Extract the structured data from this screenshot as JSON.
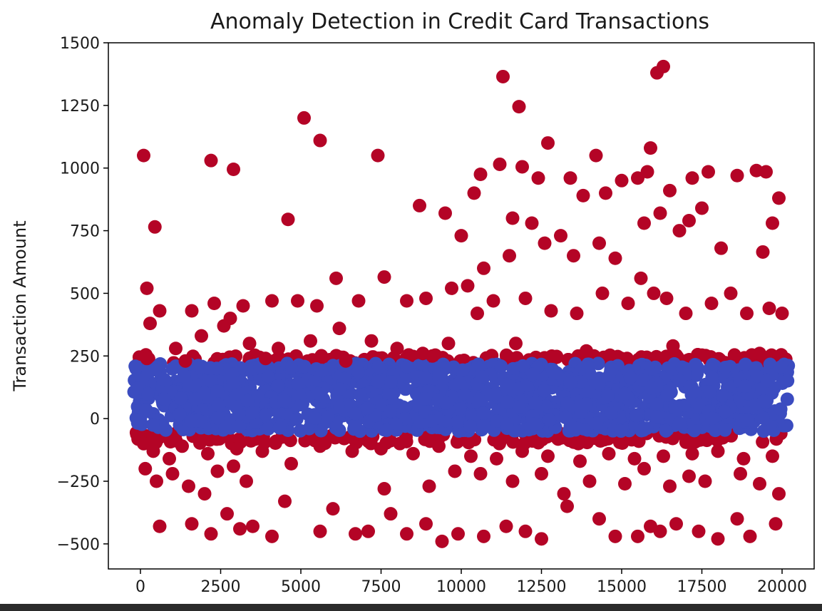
{
  "chart_data": {
    "type": "scatter",
    "title": "Anomaly Detection in Credit Card Transactions",
    "xlabel": "",
    "ylabel": "Transaction Amount",
    "xlim": [
      -1000,
      21000
    ],
    "ylim": [
      -600,
      1500
    ],
    "xticks": [
      0,
      2500,
      5000,
      7500,
      10000,
      12500,
      15000,
      17500,
      20000
    ],
    "xtick_labels": [
      "0",
      "2500",
      "5000",
      "7500",
      "10000",
      "12500",
      "15000",
      "17500",
      "20000"
    ],
    "yticks": [
      -500,
      -250,
      0,
      250,
      500,
      750,
      1000,
      1250,
      1500
    ],
    "ytick_labels": [
      "−500",
      "−250",
      "0",
      "250",
      "500",
      "750",
      "1000",
      "1250",
      "1500"
    ],
    "grid": false,
    "colors": {
      "normal": "#3b4cc0",
      "anomaly": "#b40426"
    },
    "series": [
      {
        "key": "normal",
        "x_range": [
          -200,
          20200
        ],
        "y_band": [
          -50,
          220
        ],
        "count": 20000
      },
      {
        "key": "anomaly",
        "points": [
          [
            100,
            1050
          ],
          [
            2200,
            1030
          ],
          [
            2900,
            995
          ],
          [
            5100,
            1200
          ],
          [
            5600,
            1110
          ],
          [
            7400,
            1050
          ],
          [
            11300,
            1365
          ],
          [
            11800,
            1245
          ],
          [
            12700,
            1100
          ],
          [
            14200,
            1050
          ],
          [
            15900,
            1080
          ],
          [
            16100,
            1380
          ],
          [
            16300,
            1405
          ],
          [
            450,
            765
          ],
          [
            4600,
            795
          ],
          [
            8700,
            850
          ],
          [
            9500,
            820
          ],
          [
            10000,
            730
          ],
          [
            10400,
            900
          ],
          [
            10600,
            975
          ],
          [
            11200,
            1015
          ],
          [
            11900,
            1005
          ],
          [
            12400,
            960
          ],
          [
            13400,
            960
          ],
          [
            13800,
            890
          ],
          [
            14500,
            900
          ],
          [
            15000,
            950
          ],
          [
            15500,
            960
          ],
          [
            15800,
            985
          ],
          [
            16500,
            910
          ],
          [
            17200,
            960
          ],
          [
            17700,
            985
          ],
          [
            18600,
            970
          ],
          [
            19200,
            990
          ],
          [
            19500,
            985
          ],
          [
            19900,
            880
          ],
          [
            19700,
            780
          ],
          [
            19400,
            665
          ],
          [
            17100,
            790
          ],
          [
            17500,
            840
          ],
          [
            18100,
            680
          ],
          [
            11600,
            800
          ],
          [
            12200,
            780
          ],
          [
            13100,
            730
          ],
          [
            14300,
            700
          ],
          [
            15700,
            780
          ],
          [
            16200,
            820
          ],
          [
            16800,
            750
          ],
          [
            10700,
            600
          ],
          [
            11500,
            650
          ],
          [
            12600,
            700
          ],
          [
            13500,
            650
          ],
          [
            14800,
            640
          ],
          [
            15600,
            560
          ],
          [
            16000,
            500
          ],
          [
            200,
            520
          ],
          [
            300,
            380
          ],
          [
            600,
            430
          ],
          [
            1600,
            430
          ],
          [
            2300,
            460
          ],
          [
            2800,
            400
          ],
          [
            3200,
            450
          ],
          [
            4100,
            470
          ],
          [
            4900,
            470
          ],
          [
            5500,
            450
          ],
          [
            6100,
            560
          ],
          [
            6800,
            470
          ],
          [
            7600,
            565
          ],
          [
            8300,
            470
          ],
          [
            8900,
            480
          ],
          [
            9700,
            520
          ],
          [
            10200,
            530
          ],
          [
            200,
            240
          ],
          [
            1100,
            280
          ],
          [
            1900,
            330
          ],
          [
            2600,
            370
          ],
          [
            3400,
            300
          ],
          [
            4300,
            280
          ],
          [
            5300,
            310
          ],
          [
            6200,
            360
          ],
          [
            7200,
            310
          ],
          [
            8000,
            280
          ],
          [
            8800,
            260
          ],
          [
            9600,
            300
          ],
          [
            10500,
            420
          ],
          [
            11000,
            470
          ],
          [
            12000,
            480
          ],
          [
            12800,
            430
          ],
          [
            13600,
            420
          ],
          [
            14400,
            500
          ],
          [
            15200,
            460
          ],
          [
            16400,
            480
          ],
          [
            17000,
            420
          ],
          [
            17800,
            460
          ],
          [
            18400,
            500
          ],
          [
            18900,
            420
          ],
          [
            19600,
            440
          ],
          [
            20000,
            420
          ],
          [
            1400,
            230
          ],
          [
            3900,
            240
          ],
          [
            6400,
            230
          ],
          [
            9100,
            250
          ],
          [
            11700,
            300
          ],
          [
            13900,
            270
          ],
          [
            16600,
            290
          ],
          [
            19300,
            260
          ],
          [
            100,
            -100
          ],
          [
            400,
            -130
          ],
          [
            900,
            -160
          ],
          [
            1300,
            -110
          ],
          [
            2100,
            -140
          ],
          [
            3000,
            -120
          ],
          [
            3800,
            -130
          ],
          [
            4700,
            -180
          ],
          [
            5600,
            -110
          ],
          [
            6600,
            -130
          ],
          [
            7500,
            -120
          ],
          [
            8500,
            -140
          ],
          [
            9300,
            -110
          ],
          [
            10300,
            -150
          ],
          [
            11100,
            -160
          ],
          [
            11900,
            -130
          ],
          [
            12700,
            -150
          ],
          [
            13700,
            -170
          ],
          [
            14600,
            -140
          ],
          [
            15400,
            -160
          ],
          [
            16300,
            -150
          ],
          [
            17200,
            -140
          ],
          [
            18000,
            -130
          ],
          [
            18800,
            -160
          ],
          [
            19700,
            -150
          ],
          [
            150,
            -200
          ],
          [
            500,
            -250
          ],
          [
            1000,
            -220
          ],
          [
            1500,
            -270
          ],
          [
            2000,
            -300
          ],
          [
            2400,
            -210
          ],
          [
            2900,
            -190
          ],
          [
            3300,
            -250
          ],
          [
            4500,
            -330
          ],
          [
            6000,
            -360
          ],
          [
            7600,
            -280
          ],
          [
            9000,
            -270
          ],
          [
            9800,
            -210
          ],
          [
            10600,
            -220
          ],
          [
            11600,
            -250
          ],
          [
            12500,
            -220
          ],
          [
            13200,
            -300
          ],
          [
            14000,
            -250
          ],
          [
            15100,
            -260
          ],
          [
            15700,
            -200
          ],
          [
            16500,
            -270
          ],
          [
            17100,
            -230
          ],
          [
            17600,
            -250
          ],
          [
            18700,
            -220
          ],
          [
            19300,
            -260
          ],
          [
            19900,
            -300
          ],
          [
            600,
            -430
          ],
          [
            1600,
            -420
          ],
          [
            2200,
            -460
          ],
          [
            2700,
            -380
          ],
          [
            3100,
            -440
          ],
          [
            3500,
            -430
          ],
          [
            4100,
            -470
          ],
          [
            5600,
            -450
          ],
          [
            6700,
            -460
          ],
          [
            7100,
            -450
          ],
          [
            7800,
            -380
          ],
          [
            8300,
            -460
          ],
          [
            8900,
            -420
          ],
          [
            9400,
            -490
          ],
          [
            9900,
            -460
          ],
          [
            10700,
            -470
          ],
          [
            11400,
            -430
          ],
          [
            12000,
            -450
          ],
          [
            12500,
            -480
          ],
          [
            13300,
            -350
          ],
          [
            14300,
            -400
          ],
          [
            14800,
            -470
          ],
          [
            15500,
            -470
          ],
          [
            15900,
            -430
          ],
          [
            16200,
            -450
          ],
          [
            16700,
            -420
          ],
          [
            17400,
            -450
          ],
          [
            18000,
            -480
          ],
          [
            18600,
            -400
          ],
          [
            19000,
            -470
          ],
          [
            19800,
            -420
          ]
        ]
      }
    ]
  }
}
